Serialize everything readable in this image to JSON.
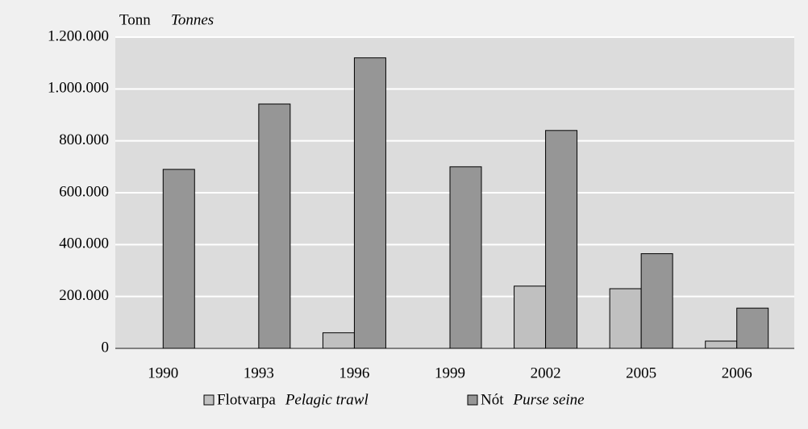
{
  "chart_data": {
    "type": "bar",
    "y_label": "Tonn",
    "y_label_en": "Tonnes",
    "categories": [
      "1990",
      "1993",
      "1996",
      "1999",
      "2002",
      "2005",
      "2006"
    ],
    "series": [
      {
        "name": "Flotvarpa",
        "name_en": "Pelagic trawl",
        "color": "#c0c0c0",
        "values": [
          0,
          0,
          60000,
          0,
          240000,
          230000,
          28000
        ]
      },
      {
        "name": "Nót",
        "name_en": "Purse seine",
        "color": "#969696",
        "values": [
          690000,
          942000,
          1120000,
          700000,
          840000,
          365000,
          155000
        ]
      }
    ],
    "ylim": [
      0,
      1200000
    ],
    "yticks": [
      0,
      {
        "value": 200000,
        "label": "200.000"
      },
      {
        "value": 400000,
        "label": "400.000"
      },
      {
        "value": 600000,
        "label": "600.000"
      },
      {
        "value": 800000,
        "label": "800.000"
      },
      {
        "value": 1000000,
        "label": "1.000.000"
      },
      {
        "value": 1200000,
        "label": "1.200.000"
      }
    ],
    "grid": true
  }
}
